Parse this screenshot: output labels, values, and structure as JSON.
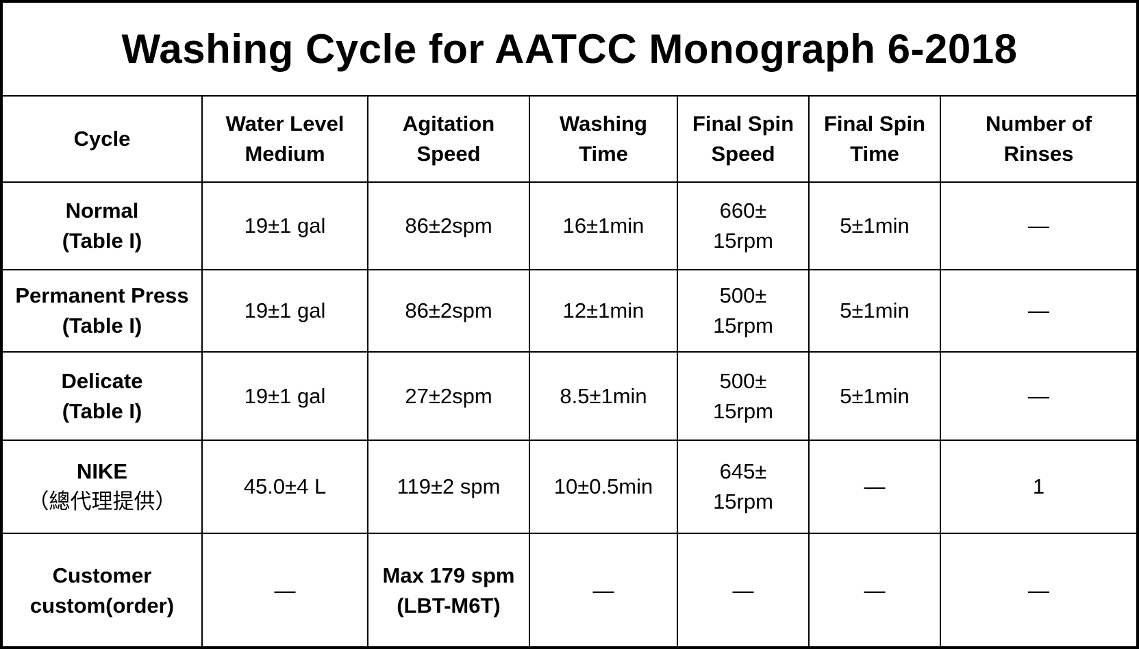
{
  "title": "Washing Cycle for AATCC Monograph 6-2018",
  "headers": [
    [
      "Cycle"
    ],
    [
      "Water Level",
      "Medium"
    ],
    [
      "Agitation",
      "Speed"
    ],
    [
      "Washing",
      "Time"
    ],
    [
      "Final Spin",
      "Speed"
    ],
    [
      "Final Spin",
      "Time"
    ],
    [
      "Number of",
      "Rinses"
    ]
  ],
  "rows": [
    {
      "cycle": [
        "Normal",
        "(Table I)"
      ],
      "water_level": [
        "19±1 gal"
      ],
      "agitation": [
        "86±2spm"
      ],
      "washing_time": [
        "16±1min"
      ],
      "final_spin_speed": [
        "660±",
        "15rpm"
      ],
      "final_spin_time": [
        "5±1min"
      ],
      "rinses": [
        "—"
      ]
    },
    {
      "cycle": [
        "Permanent Press",
        "(Table I)"
      ],
      "water_level": [
        "19±1 gal"
      ],
      "agitation": [
        "86±2spm"
      ],
      "washing_time": [
        "12±1min"
      ],
      "final_spin_speed": [
        "500±",
        "15rpm"
      ],
      "final_spin_time": [
        "5±1min"
      ],
      "rinses": [
        "—"
      ]
    },
    {
      "cycle": [
        "Delicate",
        "(Table I)"
      ],
      "water_level": [
        "19±1 gal"
      ],
      "agitation": [
        "27±2spm"
      ],
      "washing_time": [
        "8.5±1min"
      ],
      "final_spin_speed": [
        "500±",
        "15rpm"
      ],
      "final_spin_time": [
        "5±1min"
      ],
      "rinses": [
        "—"
      ]
    },
    {
      "cycle": [
        "NIKE",
        "（總代理提供）"
      ],
      "water_level": [
        "45.0±4 L"
      ],
      "agitation": [
        "119±2 spm"
      ],
      "washing_time": [
        "10±0.5min"
      ],
      "final_spin_speed": [
        "645±",
        "15rpm"
      ],
      "final_spin_time": [
        "—"
      ],
      "rinses": [
        "1"
      ]
    },
    {
      "cycle": [
        "Customer",
        "custom(order)"
      ],
      "water_level": [
        "—"
      ],
      "agitation": [
        "Max 179 spm",
        "(LBT-M6T)"
      ],
      "washing_time": [
        "—"
      ],
      "final_spin_speed": [
        "—"
      ],
      "final_spin_time": [
        "—"
      ],
      "rinses": [
        "—"
      ]
    }
  ]
}
